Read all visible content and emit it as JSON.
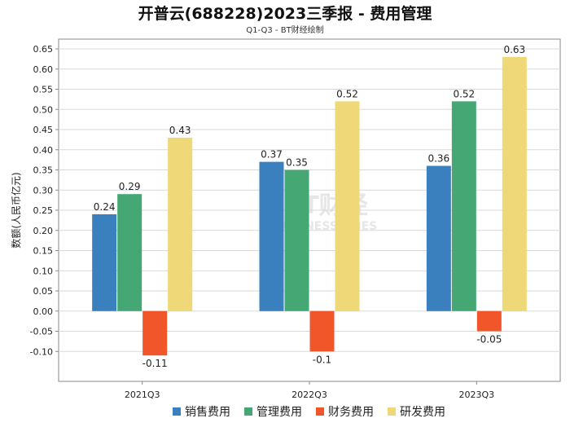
{
  "chart_data": {
    "type": "bar",
    "title": "开普云(688228)2023三季报 - 费用管理",
    "subtitle": "Q1-Q3 - BT财经绘制",
    "xlabel": "",
    "ylabel": "数额(人民币亿元)",
    "ylim": [
      -0.15,
      0.65
    ],
    "yticks": [
      "0.65",
      "0.60",
      "0.55",
      "0.50",
      "0.45",
      "0.40",
      "0.35",
      "0.30",
      "0.25",
      "0.20",
      "0.15",
      "0.10",
      "0.05",
      "0.00",
      "-0.05",
      "-0.10"
    ],
    "categories": [
      "2021Q3",
      "2022Q3",
      "2023Q3"
    ],
    "series": [
      {
        "name": "销售费用",
        "color": "#3a80bf",
        "values": [
          0.24,
          0.37,
          0.36
        ],
        "labels": [
          "0.24",
          "0.37",
          "0.36"
        ]
      },
      {
        "name": "管理费用",
        "color": "#45a774",
        "values": [
          0.29,
          0.35,
          0.52
        ],
        "labels": [
          "0.29",
          "0.35",
          "0.52"
        ]
      },
      {
        "name": "财务费用",
        "color": "#f0562a",
        "values": [
          -0.11,
          -0.1,
          -0.05
        ],
        "labels": [
          "-0.11",
          "-0.1",
          "-0.05"
        ]
      },
      {
        "name": "研发费用",
        "color": "#efd877",
        "values": [
          0.43,
          0.52,
          0.63
        ],
        "labels": [
          "0.43",
          "0.52",
          "0.63"
        ]
      }
    ],
    "grid": true,
    "legend": "bottom",
    "watermark": {
      "main": "BT财经",
      "sub": "BUSINESSTIMES"
    }
  }
}
